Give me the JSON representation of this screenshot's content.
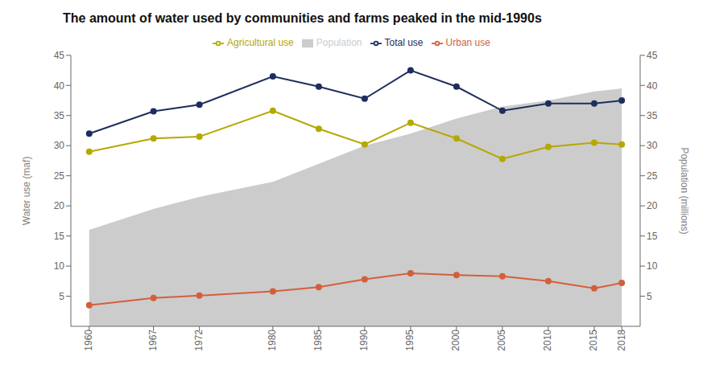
{
  "chart_data": {
    "type": "line",
    "title": "The amount of water used by communities and farms peaked in the mid-1990s",
    "x": [
      1960,
      1967,
      1972,
      1980,
      1985,
      1990,
      1995,
      2000,
      2005,
      2010,
      2015,
      2018
    ],
    "xlim": [
      1958,
      2020
    ],
    "xticks": [
      1960,
      1967,
      1972,
      1980,
      1985,
      1990,
      1995,
      2000,
      2005,
      2010,
      2015,
      2018
    ],
    "ylim": [
      0,
      45
    ],
    "yticks": [
      5,
      10,
      15,
      20,
      25,
      30,
      35,
      40,
      45
    ],
    "y2lim": [
      0,
      45
    ],
    "y2ticks": [
      5,
      10,
      15,
      20,
      25,
      30,
      35,
      40,
      45
    ],
    "ylabel": "Water use (maf)",
    "y2label": "Population (millions)",
    "grid": false,
    "legend": "top",
    "series": [
      {
        "name": "Population",
        "type": "area",
        "axis": "y2",
        "color": "#cccccc",
        "values": [
          16.0,
          19.5,
          21.5,
          24.0,
          27.0,
          30.0,
          32.0,
          34.5,
          36.5,
          37.5,
          39.0,
          39.5
        ]
      },
      {
        "name": "Urban use",
        "type": "line",
        "color": "#d45f3c",
        "marker": "circle",
        "values": [
          3.5,
          4.7,
          5.1,
          5.8,
          6.5,
          7.8,
          8.8,
          8.5,
          8.3,
          7.5,
          6.3,
          7.2
        ]
      },
      {
        "name": "Agricultural use",
        "type": "line",
        "color": "#b5a800",
        "marker": "circle",
        "values": [
          29.0,
          31.2,
          31.5,
          35.8,
          32.8,
          30.2,
          33.8,
          31.2,
          27.8,
          29.8,
          30.5,
          30.2
        ]
      },
      {
        "name": "Total use",
        "type": "line",
        "color": "#1e2e5e",
        "marker": "circle",
        "values": [
          32.0,
          35.7,
          36.8,
          41.5,
          39.8,
          37.8,
          42.5,
          39.8,
          35.8,
          37.0,
          37.0,
          37.5
        ]
      }
    ]
  }
}
